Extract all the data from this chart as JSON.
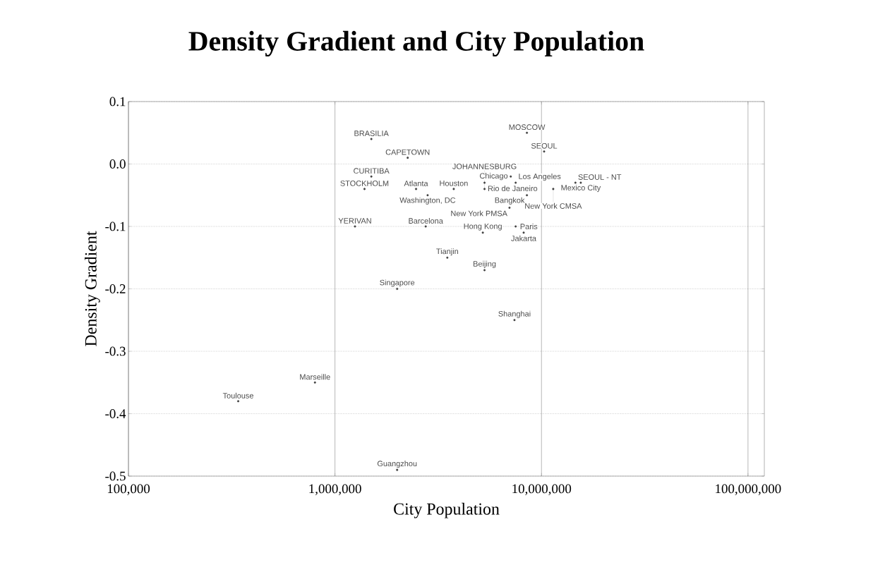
{
  "chart_data": {
    "type": "scatter",
    "title": "Density Gradient and City Population",
    "xlabel": "City Population",
    "ylabel": "Density Gradient",
    "log": "x",
    "grid": true,
    "marker": "circle",
    "xlim": [
      100000,
      120000000
    ],
    "ylim": [
      -0.5,
      0.1
    ],
    "xticks": [
      {
        "value": 100000,
        "label": "100,000"
      },
      {
        "value": 1000000,
        "label": "1,000,000"
      },
      {
        "value": 10000000,
        "label": "10,000,000"
      },
      {
        "value": 100000000,
        "label": "100,000,000"
      }
    ],
    "yticks": [
      {
        "value": 0.1,
        "label": "0.1"
      },
      {
        "value": 0,
        "label": "0.0"
      },
      {
        "value": -0.1,
        "label": "-0.1"
      },
      {
        "value": -0.2,
        "label": "-0.2"
      },
      {
        "value": -0.3,
        "label": "-0.3"
      },
      {
        "value": -0.4,
        "label": "-0.4"
      },
      {
        "value": -0.5,
        "label": "-0.5"
      }
    ],
    "x": [
      1500000,
      2250000,
      8500000,
      10300000,
      1500000,
      1390000,
      2470000,
      2810000,
      3760000,
      5300000,
      5300000,
      7500000,
      7100000,
      14600000,
      15500000,
      11400000,
      8500000,
      7000000,
      1250000,
      2750000,
      7500000,
      5200000,
      8200000,
      3500000,
      5300000,
      2000000,
      7400000,
      800000,
      340000,
      2000000
    ],
    "values": [
      0.04,
      0.01,
      0.05,
      0.02,
      -0.02,
      -0.04,
      -0.04,
      -0.05,
      -0.04,
      -0.03,
      -0.04,
      -0.03,
      -0.02,
      -0.03,
      -0.03,
      -0.04,
      -0.05,
      -0.07,
      -0.1,
      -0.1,
      -0.1,
      -0.11,
      -0.11,
      -0.15,
      -0.17,
      -0.2,
      -0.25,
      -0.35,
      -0.38,
      -0.49
    ],
    "annotations": [
      {
        "text": "BRASILIA",
        "x": 1500000,
        "y": 0.04
      },
      {
        "text": "CAPETOWN",
        "x": 2250000,
        "y": 0.01
      },
      {
        "text": "MOSCOW",
        "x": 8500000,
        "y": 0.05
      },
      {
        "text": "SEOUL",
        "x": 10300000,
        "y": 0.02
      },
      {
        "text": "CURITIBA",
        "x": 1500000,
        "y": -0.02
      },
      {
        "text": "STOCKHOLM",
        "x": 1390000,
        "y": -0.04
      },
      {
        "text": "Atlanta",
        "x": 2470000,
        "y": -0.04
      },
      {
        "text": "Washington, DC",
        "x": 2810000,
        "y": -0.05
      },
      {
        "text": "Houston",
        "x": 3760000,
        "y": -0.04
      },
      {
        "text": "Rio de Janeiro",
        "x": 5300000,
        "y": -0.03
      },
      {
        "text": "JOHANNESBURG",
        "x": 5300000,
        "y": -0.04
      },
      {
        "text": "Los Angeles",
        "x": 7500000,
        "y": -0.03
      },
      {
        "text": "Chicago",
        "x": 7100000,
        "y": -0.02
      },
      {
        "text": "SEOUL - NT",
        "x": 14600000,
        "y": -0.03
      },
      {
        "text": "Mexico City",
        "x": 15500000,
        "y": -0.03
      },
      {
        "text": "New York CMSA",
        "x": 11400000,
        "y": -0.04
      },
      {
        "text": "Bangkok",
        "x": 8500000,
        "y": -0.05
      },
      {
        "text": "New York PMSA",
        "x": 7000000,
        "y": -0.07
      },
      {
        "text": "YERIVAN",
        "x": 1250000,
        "y": -0.1
      },
      {
        "text": "Barcelona",
        "x": 2750000,
        "y": -0.1
      },
      {
        "text": "Paris",
        "x": 7500000,
        "y": -0.1
      },
      {
        "text": "Hong Kong",
        "x": 5200000,
        "y": -0.11
      },
      {
        "text": "Jakarta",
        "x": 8200000,
        "y": -0.11
      },
      {
        "text": "Tianjin",
        "x": 3500000,
        "y": -0.15
      },
      {
        "text": "Beijing",
        "x": 5300000,
        "y": -0.17
      },
      {
        "text": "Singapore",
        "x": 2000000,
        "y": -0.2
      },
      {
        "text": "Shanghai",
        "x": 7400000,
        "y": -0.25
      },
      {
        "text": "Marseille",
        "x": 800000,
        "y": -0.35
      },
      {
        "text": "Toulouse",
        "x": 340000,
        "y": -0.38
      },
      {
        "text": "Guangzhou",
        "x": 2000000,
        "y": -0.49
      }
    ]
  }
}
